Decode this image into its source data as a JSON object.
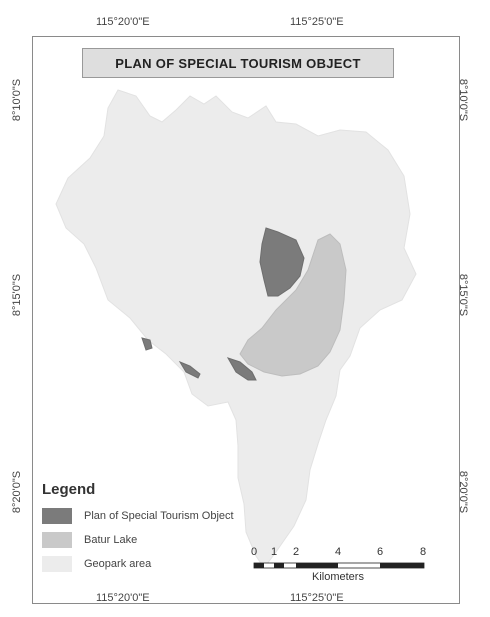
{
  "title": "PLAN OF SPECIAL TOURISM OBJECT",
  "coordinates": {
    "top_left": "115°20'0\"E",
    "top_right": "115°25'0\"E",
    "bottom_left": "115°20'0\"E",
    "bottom_right": "115°25'0\"E",
    "left_top": "8°10'0\"S",
    "left_mid": "8°15'0\"S",
    "left_bottom": "8°20'0\"S",
    "right_top": "8°10'0\"S",
    "right_mid": "8°15'0\"S",
    "right_bottom": "8°20'0\"S"
  },
  "legend": {
    "title": "Legend",
    "items": [
      {
        "label": "Plan of Special Tourism Object",
        "color": "#7b7b7b"
      },
      {
        "label": "Batur Lake",
        "color": "#c9c9c9"
      },
      {
        "label": "Geopark area",
        "color": "#ececec"
      }
    ]
  },
  "scale_bar": {
    "ticks": [
      "0",
      "1",
      "2",
      "4",
      "6",
      "8"
    ],
    "unit": "Kilometers"
  },
  "colors": {
    "geopark": "#ececec",
    "lake": "#c9c9c9",
    "tourism": "#7b7b7b"
  }
}
